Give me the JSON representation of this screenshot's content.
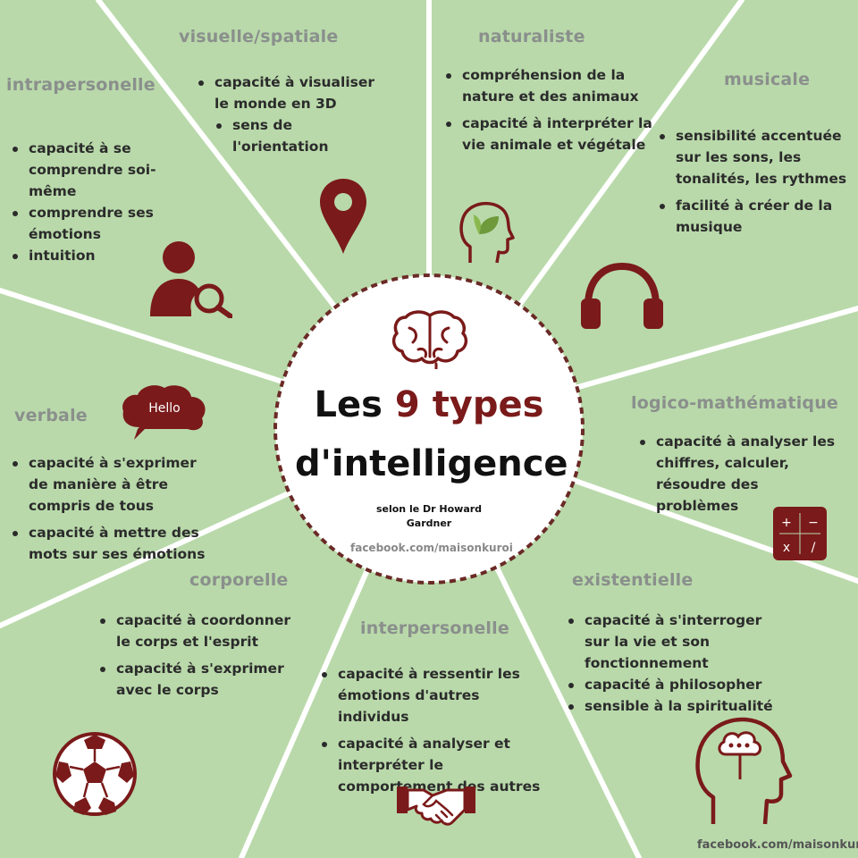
{
  "center": {
    "title_prefix": "Les",
    "title_number": "9",
    "title_word": "types",
    "title_line2": "d'intelligence",
    "subtitle": "selon le Dr Howard Gardner",
    "facebook": "facebook.com/maisonkuroi"
  },
  "corner_facebook": "facebook.com/maisonkuroi",
  "sectors": {
    "visuelle": {
      "title": "visuelle/spatiale",
      "items": [
        "capacité à visualiser le monde en 3D",
        "sens de l'orientation"
      ],
      "icon": "map-pin-icon"
    },
    "naturaliste": {
      "title": "naturaliste",
      "items": [
        "compréhension de la nature et des animaux",
        "capacité à interpréter la vie animale et végétale"
      ],
      "icon": "head-leaf-icon"
    },
    "musicale": {
      "title": "musicale",
      "items": [
        "sensibilité accentuée sur les sons, les tonalités, les rythmes",
        "facilité à créer de la musique"
      ],
      "icon": "headphones-icon"
    },
    "intrapersonelle": {
      "title": "intrapersonelle",
      "items": [
        "capacité à se comprendre soi-même",
        "comprendre ses émotions",
        "intuition"
      ],
      "icon": "person-search-icon"
    },
    "verbale": {
      "title": "verbale",
      "items": [
        "capacité à s'exprimer de manière à être compris de tous",
        "capacité à mettre des mots sur ses émotions"
      ],
      "icon": "speech-cloud-icon",
      "bubble_text": "Hello"
    },
    "logico": {
      "title": "logico-mathématique",
      "items": [
        "capacité à analyser les chiffres, calculer, résoudre des problèmes"
      ],
      "icon": "calculator-icon",
      "calc_symbols": [
        "+",
        "−",
        "x",
        "/"
      ]
    },
    "corporelle": {
      "title": "corporelle",
      "items": [
        "capacité à coordonner le corps et l'esprit",
        "capacité à s'exprimer avec le corps"
      ],
      "icon": "soccer-ball-icon"
    },
    "interpersonelle": {
      "title": "interpersonelle",
      "items": [
        "capacité à ressentir les émotions d'autres individus",
        "capacité à analyser et interpréter le comportement des autres"
      ],
      "icon": "handshake-icon"
    },
    "existentielle": {
      "title": "existentielle",
      "items": [
        "capacité à s'interroger sur la vie et son fonctionnement",
        "capacité à philosopher",
        "sensible à la spiritualité"
      ],
      "icon": "head-thought-icon"
    }
  },
  "colors": {
    "background": "#b9d9aa",
    "accent": "#7a1a1a",
    "divider": "#ffffff",
    "title_grey": "#8a8f8c"
  }
}
